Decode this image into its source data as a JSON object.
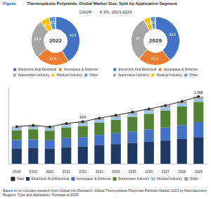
{
  "header": {
    "label": "Figure.",
    "title": "Thermoplastic Polyimide, Global Market Size, Split by Application Segment",
    "cagr_label": "CAGR:",
    "cagr_value": "6.3%, 2023-2029"
  },
  "chart_data": [
    {
      "type": "doughnut",
      "title": "2022",
      "categories": [
        "Electronic And Electrical",
        "Aerospace & Defense",
        "Automotive Industry",
        "Medical Industry",
        "Other"
      ],
      "values": [
        40.9,
        22.6,
        25.9,
        6.1,
        4.5
      ],
      "colors": [
        "#4472c4",
        "#ed7d31",
        "#a5a5a5",
        "#ffc000",
        "#5b9bd5"
      ],
      "data_labels": true,
      "legend": "bottom"
    },
    {
      "type": "doughnut",
      "title": "2029",
      "categories": [
        "Electronic And Electrical",
        "Aerospace & Defense",
        "Automotive Industry",
        "Medical Industry",
        "Other"
      ],
      "values": [
        39.6,
        22.4,
        30.0,
        4.5,
        3.5
      ],
      "colors": [
        "#4472c4",
        "#ed7d31",
        "#a5a5a5",
        "#ffc000",
        "#5b9bd5"
      ],
      "data_labels": true,
      "legend": "bottom"
    },
    {
      "type": "bar",
      "stacked": true,
      "legend": "bottom",
      "grid": false,
      "tick_labels": "x",
      "categories": [
        "2018",
        "2019",
        "2020",
        "2021",
        "2022",
        "2023",
        "2024",
        "2025",
        "2026",
        "2027",
        "2028",
        "2029"
      ],
      "ylim": [
        0,
        1200
      ],
      "series": [
        {
          "name": "Electronic And Electrical",
          "color": "#203864",
          "values": [
            242,
            250,
            240,
            262,
            273,
            295,
            312,
            330,
            348,
            368,
            393,
            423
          ]
        },
        {
          "name": "Aerospace & Defense",
          "color": "#4472c4",
          "values": [
            133,
            137,
            132,
            144,
            151,
            163,
            173,
            184,
            195,
            207,
            222,
            239
          ]
        },
        {
          "name": "Automotive Industry",
          "color": "#548235",
          "values": [
            153,
            159,
            152,
            167,
            173,
            194,
            210,
            229,
            249,
            270,
            294,
            321
          ]
        },
        {
          "name": "Medical Industry",
          "color": "#9dc3e6",
          "values": [
            36,
            37,
            35,
            39,
            41,
            42,
            43,
            44,
            45,
            46,
            47,
            48
          ]
        },
        {
          "name": "Other",
          "color": "#a5a5a5",
          "values": [
            26,
            27,
            26,
            28,
            30,
            31,
            32,
            33,
            33,
            34,
            34,
            37
          ]
        },
        {
          "name": "Total",
          "type": "line",
          "color": "#262626",
          "marker": "circle",
          "data_labels": true,
          "values": [
            590,
            610,
            585,
            640,
            668,
            725,
            770,
            820,
            870,
            925,
            990,
            1068
          ],
          "value_labels": [
            null,
            null,
            null,
            null,
            "668",
            null,
            null,
            null,
            null,
            null,
            null,
            "1,068"
          ]
        }
      ]
    }
  ],
  "source": "Based on or includes research from Global Info Research: Global Thermoplastic Polyimide Particles Market 2023 by Manufacturers, Regions, Type and Application, Forecast to 2029."
}
